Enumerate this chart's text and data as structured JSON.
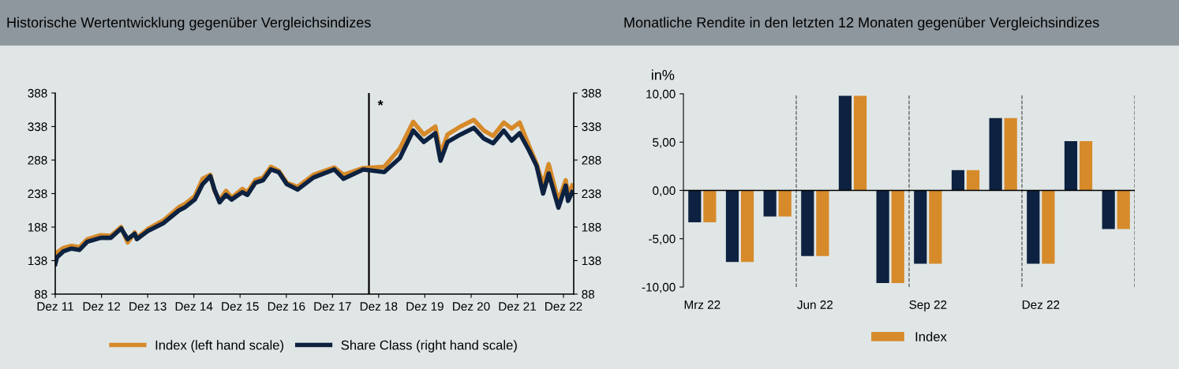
{
  "chart_data": [
    {
      "type": "line",
      "title": "Historische Wertentwicklung gegenüber Vergleichsindizes",
      "x": [
        "2011-12-01",
        "2011-12-15",
        "2012-02-05",
        "2012-04-08",
        "2012-06-10",
        "2012-08-10",
        "2012-11-25",
        "2013-02-12",
        "2013-05-05",
        "2013-06-25",
        "2013-08-20",
        "2013-09-07",
        "2013-12-01",
        "2014-04-05",
        "2014-08-06",
        "2014-09-18",
        "2014-12-08",
        "2015-02-08",
        "2015-04-10",
        "2015-05-13",
        "2015-06-22",
        "2015-08-12",
        "2015-09-25",
        "2015-12-19",
        "2016-01-28",
        "2016-03-30",
        "2016-06-01",
        "2016-08-01",
        "2016-10-02",
        "2016-12-05",
        "2017-03-01",
        "2017-07-04",
        "2017-12-15",
        "2018-02-26",
        "2018-08-01",
        "2019-01-14",
        "2019-05-17",
        "2019-08-31",
        "2019-11-23",
        "2020-02-22",
        "2020-04-03",
        "2020-05-28",
        "2020-09-07",
        "2020-12-22",
        "2021-03-12",
        "2021-05-24",
        "2021-08-16",
        "2021-10-17",
        "2021-12-19",
        "2022-03-02",
        "2022-05-03",
        "2022-06-23",
        "2022-08-06",
        "2022-10-22",
        "2022-12-19",
        "2023-01-06",
        "2023-02-08"
      ],
      "series": [
        {
          "name": "Index (left hand scale)",
          "color": "#d68a2a",
          "values": [
            146,
            150,
            157,
            160,
            158,
            170,
            176,
            175,
            188,
            165,
            180,
            172,
            185,
            198,
            218,
            222,
            234,
            260,
            266,
            242,
            228,
            242,
            232,
            245,
            240,
            258,
            262,
            278,
            272,
            254,
            248,
            266,
            277,
            266,
            276,
            278,
            305,
            345,
            326,
            338,
            297,
            326,
            338,
            348,
            332,
            324,
            344,
            335,
            344,
            310,
            282,
            251,
            282,
            227,
            258,
            235,
            250
          ]
        },
        {
          "name": "Share Class (right hand scale)",
          "color": "#0d2240",
          "axis": "y2",
          "values": [
            133,
            143,
            152,
            156,
            154,
            166,
            172,
            172,
            186,
            170,
            178,
            170,
            182,
            194,
            213,
            217,
            229,
            252,
            264,
            244,
            225,
            236,
            229,
            240,
            236,
            254,
            258,
            274,
            270,
            252,
            244,
            262,
            274,
            260,
            274,
            270,
            291,
            332,
            315,
            328,
            287,
            315,
            326,
            336,
            320,
            313,
            332,
            317,
            328,
            303,
            279,
            238,
            268,
            217,
            250,
            227,
            240
          ]
        }
      ],
      "xlim": [
        "2011-12-01",
        "2023-02-20"
      ],
      "xticks": [
        {
          "value": "2011-12-01",
          "label": "Dez 11"
        },
        {
          "value": "2012-12-01",
          "label": "Dez 12"
        },
        {
          "value": "2013-12-01",
          "label": "Dez 13"
        },
        {
          "value": "2014-12-01",
          "label": "Dez 14"
        },
        {
          "value": "2015-12-01",
          "label": "Dez 15"
        },
        {
          "value": "2016-12-01",
          "label": "Dez 16"
        },
        {
          "value": "2017-12-01",
          "label": "Dez 17"
        },
        {
          "value": "2018-12-01",
          "label": "Dez 18"
        },
        {
          "value": "2019-12-01",
          "label": "Dez 19"
        },
        {
          "value": "2020-12-01",
          "label": "Dez 20"
        },
        {
          "value": "2021-12-01",
          "label": "Dez 21"
        },
        {
          "value": "2022-12-01",
          "label": "Dez 22"
        }
      ],
      "ylim": [
        88,
        388
      ],
      "yticks": [
        88,
        138,
        188,
        238,
        288,
        338,
        388
      ],
      "y2lim": [
        88,
        388
      ],
      "y2ticks": [
        88,
        138,
        188,
        238,
        288,
        338,
        388
      ],
      "ref_lines": [
        {
          "axis": "x",
          "value": "2018-09-15",
          "label": "*",
          "color": "#000000",
          "line_style": "solid"
        }
      ],
      "legend": "bottom",
      "grid": false
    },
    {
      "type": "bar",
      "title": "Monatliche Rendite in den letzten 12 Monaten gegenüber Vergleichsindizes",
      "ylabel": "in%",
      "categories": [
        "Mrz 22",
        null,
        null,
        "Jun 22",
        null,
        null,
        "Sep 22",
        null,
        null,
        "Dez 22",
        null,
        null
      ],
      "series": [
        {
          "color": "#0d2240",
          "values": [
            -3.3,
            -7.4,
            -2.7,
            -6.8,
            9.8,
            -9.6,
            -7.6,
            2.1,
            7.5,
            -7.6,
            5.1,
            -4.0
          ]
        },
        {
          "name": "Index",
          "color": "#d68a2a",
          "values": [
            -3.3,
            -7.4,
            -2.7,
            -6.8,
            9.8,
            -9.6,
            -7.6,
            2.1,
            7.5,
            -7.6,
            5.1,
            -4.0
          ]
        }
      ],
      "ylim": [
        -10,
        10
      ],
      "yticks": [
        {
          "value": -10,
          "label": "-10,00"
        },
        {
          "value": -5,
          "label": "-5,00"
        },
        {
          "value": 0,
          "label": "0,00"
        },
        {
          "value": 5,
          "label": "5,00"
        },
        {
          "value": 10,
          "label": "10,00"
        }
      ],
      "legend": "bottom",
      "grid": false
    }
  ]
}
